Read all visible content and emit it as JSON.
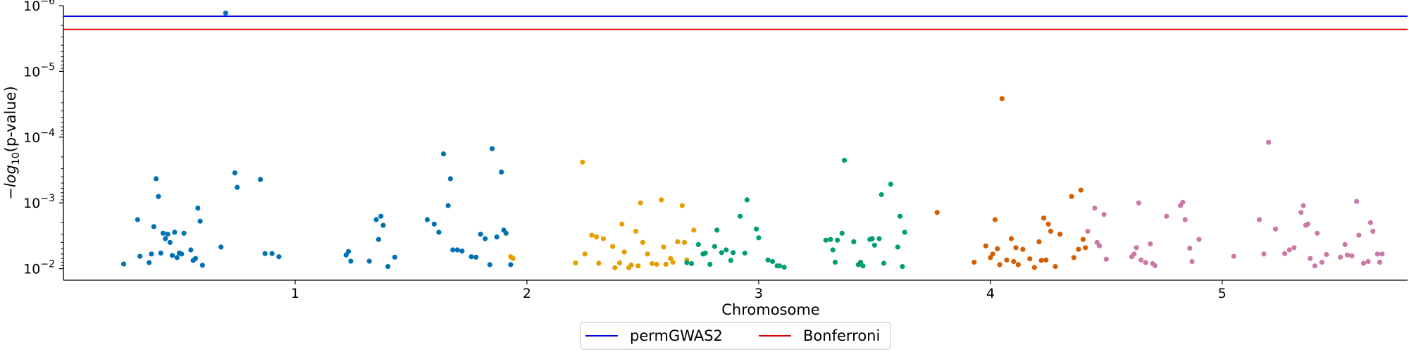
{
  "chart_data": {
    "type": "scatter",
    "title": "",
    "xlabel": "Chromosome",
    "ylabel_prefix": "−log",
    "ylabel_sub": "10",
    "ylabel_suffix": "(p-value)",
    "y_scale": "log",
    "y_inverted": true,
    "ylim": [
      0.015,
      1e-06
    ],
    "grid": false,
    "legend_position": "bottom-center",
    "x_ticks": [
      {
        "pos": 1.0,
        "label": "1"
      },
      {
        "pos": 2.0,
        "label": "2"
      },
      {
        "pos": 3.0,
        "label": "3"
      },
      {
        "pos": 4.0,
        "label": "4"
      },
      {
        "pos": 5.0,
        "label": "5"
      }
    ],
    "xlim": [
      0.0,
      5.8
    ],
    "y_ticks": [
      {
        "value": 1e-06,
        "base": "10",
        "exp": "−6"
      },
      {
        "value": 1e-05,
        "base": "10",
        "exp": "−5"
      },
      {
        "value": 0.0001,
        "base": "10",
        "exp": "−4"
      },
      {
        "value": 0.001,
        "base": "10",
        "exp": "−3"
      },
      {
        "value": 0.01,
        "base": "10",
        "exp": "−2"
      }
    ],
    "thresholds": [
      {
        "name": "permGWAS2",
        "value": 1.45e-06,
        "color": "#0000dd"
      },
      {
        "name": "Bonferroni",
        "value": 2.3e-06,
        "color": "#dd0000"
      }
    ],
    "series": [
      {
        "chromosome": "1",
        "color": "#0072b2",
        "points": [
          [
            0.26,
            0.0085
          ],
          [
            0.32,
            0.0018
          ],
          [
            0.33,
            0.0065
          ],
          [
            0.37,
            0.0081
          ],
          [
            0.38,
            0.006
          ],
          [
            0.39,
            0.0023
          ],
          [
            0.4,
            0.00043
          ],
          [
            0.41,
            0.0008
          ],
          [
            0.42,
            0.0058
          ],
          [
            0.43,
            0.0029
          ],
          [
            0.44,
            0.0035
          ],
          [
            0.45,
            0.003
          ],
          [
            0.46,
            0.004
          ],
          [
            0.47,
            0.0063
          ],
          [
            0.48,
            0.0028
          ],
          [
            0.49,
            0.0068
          ],
          [
            0.5,
            0.0058
          ],
          [
            0.51,
            0.006
          ],
          [
            0.52,
            0.0029
          ],
          [
            0.55,
            0.0052
          ],
          [
            0.56,
            0.0075
          ],
          [
            0.57,
            0.007
          ],
          [
            0.58,
            0.0012
          ],
          [
            0.59,
            0.0019
          ],
          [
            0.6,
            0.0089
          ],
          [
            0.68,
            0.0047
          ],
          [
            0.7,
            1.3e-06
          ],
          [
            0.74,
            0.00035
          ],
          [
            0.75,
            0.00058
          ],
          [
            0.85,
            0.00044
          ],
          [
            0.87,
            0.0059
          ],
          [
            0.9,
            0.0059
          ],
          [
            0.93,
            0.0066
          ],
          [
            1.22,
            0.0062
          ],
          [
            1.23,
            0.0055
          ],
          [
            1.24,
            0.0077
          ],
          [
            1.32,
            0.0077
          ],
          [
            1.35,
            0.0018
          ],
          [
            1.36,
            0.0036
          ],
          [
            1.37,
            0.0016
          ],
          [
            1.38,
            0.0022
          ],
          [
            1.4,
            0.0093
          ],
          [
            1.43,
            0.0067
          ],
          [
            1.57,
            0.0018
          ],
          [
            1.6,
            0.0021
          ],
          [
            1.62,
            0.0028
          ],
          [
            1.64,
            0.00018
          ],
          [
            1.66,
            0.0011
          ],
          [
            1.67,
            0.00043
          ],
          [
            1.68,
            0.0052
          ],
          [
            1.7,
            0.0052
          ],
          [
            1.72,
            0.0054
          ],
          [
            1.76,
            0.0066
          ],
          [
            1.78,
            0.0067
          ],
          [
            1.8,
            0.003
          ],
          [
            1.82,
            0.0035
          ],
          [
            1.84,
            0.0087
          ],
          [
            1.85,
            0.00015
          ],
          [
            1.87,
            0.0033
          ],
          [
            1.89,
            0.00034
          ],
          [
            1.9,
            0.0026
          ],
          [
            1.91,
            0.0029
          ],
          [
            1.93,
            0.0087
          ]
        ]
      },
      {
        "chromosome": "2",
        "color": "#e69f00",
        "points": [
          [
            1.93,
            0.0066
          ],
          [
            1.94,
            0.007
          ],
          [
            2.21,
            0.0082
          ],
          [
            2.24,
            0.00024
          ],
          [
            2.25,
            0.006
          ],
          [
            2.28,
            0.0031
          ],
          [
            2.3,
            0.0033
          ],
          [
            2.31,
            0.0083
          ],
          [
            2.33,
            0.0035
          ],
          [
            2.37,
            0.0046
          ],
          [
            2.38,
            0.0097
          ],
          [
            2.4,
            0.0082
          ],
          [
            2.41,
            0.0021
          ],
          [
            2.42,
            0.0056
          ],
          [
            2.44,
            0.0097
          ],
          [
            2.45,
            0.0088
          ],
          [
            2.47,
            0.0027
          ],
          [
            2.48,
            0.0091
          ],
          [
            2.49,
            0.001
          ],
          [
            2.5,
            0.004
          ],
          [
            2.52,
            0.006
          ],
          [
            2.54,
            0.0084
          ],
          [
            2.56,
            0.0086
          ],
          [
            2.58,
            0.0009
          ],
          [
            2.59,
            0.0047
          ],
          [
            2.6,
            0.0086
          ],
          [
            2.62,
            0.007
          ],
          [
            2.63,
            0.008
          ],
          [
            2.65,
            0.0039
          ],
          [
            2.67,
            0.0011
          ],
          [
            2.68,
            0.004
          ],
          [
            2.69,
            0.0074
          ],
          [
            2.72,
            0.0026
          ]
        ]
      },
      {
        "chromosome": "3",
        "color": "#009e73",
        "points": [
          [
            2.69,
            0.0081
          ],
          [
            2.71,
            0.0084
          ],
          [
            2.74,
            0.0043
          ],
          [
            2.76,
            0.006
          ],
          [
            2.77,
            0.0058
          ],
          [
            2.79,
            0.0086
          ],
          [
            2.81,
            0.0046
          ],
          [
            2.82,
            0.0026
          ],
          [
            2.84,
            0.0057
          ],
          [
            2.86,
            0.0052
          ],
          [
            2.88,
            0.0075
          ],
          [
            2.89,
            0.0057
          ],
          [
            2.92,
            0.0016
          ],
          [
            2.94,
            0.0058
          ],
          [
            2.95,
            0.0009
          ],
          [
            2.99,
            0.0025
          ],
          [
            3.0,
            0.0034
          ],
          [
            3.04,
            0.0074
          ],
          [
            3.06,
            0.0078
          ],
          [
            3.08,
            0.0091
          ],
          [
            3.09,
            0.0091
          ],
          [
            3.11,
            0.0095
          ],
          [
            3.29,
            0.0037
          ],
          [
            3.31,
            0.0036
          ],
          [
            3.32,
            0.0052
          ],
          [
            3.33,
            0.008
          ],
          [
            3.34,
            0.0037
          ],
          [
            3.36,
            0.0029
          ],
          [
            3.37,
            0.000225
          ],
          [
            3.41,
            0.0039
          ],
          [
            3.43,
            0.0087
          ],
          [
            3.44,
            0.008
          ],
          [
            3.45,
            0.0091
          ],
          [
            3.48,
            0.0036
          ],
          [
            3.49,
            0.0035
          ],
          [
            3.5,
            0.0044
          ],
          [
            3.52,
            0.0035
          ],
          [
            3.53,
            0.00075
          ],
          [
            3.54,
            0.0083
          ],
          [
            3.57,
            0.00052
          ],
          [
            3.6,
            0.0047
          ],
          [
            3.61,
            0.0016
          ],
          [
            3.62,
            0.0093
          ],
          [
            3.63,
            0.0028
          ]
        ]
      },
      {
        "chromosome": "4",
        "color": "#d55e00",
        "points": [
          [
            3.77,
            0.0014
          ],
          [
            3.93,
            0.008
          ],
          [
            3.98,
            0.0045
          ],
          [
            4.0,
            0.0068
          ],
          [
            4.01,
            0.006
          ],
          [
            4.02,
            0.0018
          ],
          [
            4.03,
            0.005
          ],
          [
            4.04,
            0.0087
          ],
          [
            4.05,
            2.6e-05
          ],
          [
            4.07,
            0.0074
          ],
          [
            4.09,
            0.0035
          ],
          [
            4.1,
            0.0078
          ],
          [
            4.11,
            0.0048
          ],
          [
            4.12,
            0.0087
          ],
          [
            4.14,
            0.0051
          ],
          [
            4.17,
            0.0071
          ],
          [
            4.19,
            0.0096
          ],
          [
            4.21,
            0.0039
          ],
          [
            4.22,
            0.0075
          ],
          [
            4.23,
            0.0017
          ],
          [
            4.24,
            0.0074
          ],
          [
            4.25,
            0.0021
          ],
          [
            4.26,
            0.0027
          ],
          [
            4.28,
            0.0093
          ],
          [
            4.3,
            0.003
          ],
          [
            4.35,
            0.0008
          ],
          [
            4.36,
            0.0068
          ],
          [
            4.38,
            0.0051
          ],
          [
            4.39,
            0.00064
          ],
          [
            4.4,
            0.0036
          ],
          [
            4.41,
            0.0048
          ]
        ]
      },
      {
        "chromosome": "5",
        "color": "#cc79a7",
        "points": [
          [
            4.42,
            0.0027
          ],
          [
            4.45,
            0.0012
          ],
          [
            4.46,
            0.004
          ],
          [
            4.47,
            0.0045
          ],
          [
            4.49,
            0.0015
          ],
          [
            4.5,
            0.0072
          ],
          [
            4.61,
            0.0066
          ],
          [
            4.62,
            0.006
          ],
          [
            4.63,
            0.0048
          ],
          [
            4.64,
            0.001
          ],
          [
            4.65,
            0.0074
          ],
          [
            4.67,
            0.0081
          ],
          [
            4.69,
            0.0042
          ],
          [
            4.7,
            0.0084
          ],
          [
            4.71,
            0.009
          ],
          [
            4.76,
            0.0016
          ],
          [
            4.82,
            0.0011
          ],
          [
            4.83,
            0.00098
          ],
          [
            4.84,
            0.0018
          ],
          [
            4.86,
            0.0049
          ],
          [
            4.87,
            0.0078
          ],
          [
            4.9,
            0.0036
          ],
          [
            5.05,
            0.0065
          ],
          [
            5.16,
            0.0018
          ],
          [
            5.18,
            0.006
          ],
          [
            5.2,
            0.00012
          ],
          [
            5.23,
            0.0025
          ],
          [
            5.27,
            0.0059
          ],
          [
            5.29,
            0.0052
          ],
          [
            5.31,
            0.0048
          ],
          [
            5.34,
            0.0014
          ],
          [
            5.35,
            0.0011
          ],
          [
            5.36,
            0.0022
          ],
          [
            5.37,
            0.0021
          ],
          [
            5.38,
            0.007
          ],
          [
            5.4,
            0.0091
          ],
          [
            5.41,
            0.0029
          ],
          [
            5.43,
            0.008
          ],
          [
            5.45,
            0.0061
          ],
          [
            5.51,
            0.0067
          ],
          [
            5.53,
            0.0043
          ],
          [
            5.54,
            0.0062
          ],
          [
            5.56,
            0.0064
          ],
          [
            5.58,
            0.00095
          ],
          [
            5.59,
            0.0031
          ],
          [
            5.61,
            0.0083
          ],
          [
            5.63,
            0.0078
          ],
          [
            5.64,
            0.002
          ],
          [
            5.65,
            0.0027
          ],
          [
            5.67,
            0.006
          ],
          [
            5.68,
            0.008
          ],
          [
            5.69,
            0.006
          ]
        ]
      }
    ]
  }
}
